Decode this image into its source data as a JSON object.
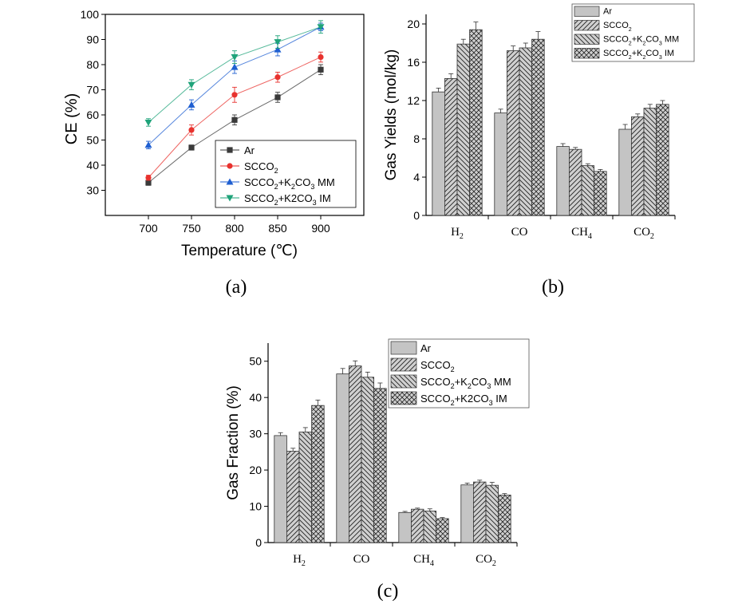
{
  "panels": [
    {
      "panel_label": "(a)",
      "legend": [
        {
          "text": "Ar"
        },
        {
          "text": "SCCO",
          "sub": "2",
          "rest": ""
        },
        {
          "text": "SCCO",
          "sub": "2",
          "rest": "+K",
          "sub2": "2",
          "rest2": "CO",
          "sub3": "3",
          "rest3": " MM"
        },
        {
          "text": "SCCO",
          "sub": "2",
          "rest": "+K2CO",
          "sub2": "3",
          "rest2": "  IM"
        }
      ]
    },
    {
      "panel_label": "(b)",
      "legend": [
        {
          "text": "Ar"
        },
        {
          "text": "SCCO",
          "sub": "2",
          "rest": ""
        },
        {
          "text": "SCCO",
          "sub": "2",
          "rest": "+K",
          "sub2": "2",
          "rest2": "CO",
          "sub3": "3",
          "rest3": " MM"
        },
        {
          "text": "SCCO",
          "sub": "2",
          "rest": "+K",
          "sub2": "2",
          "rest2": "CO",
          "sub3": "3",
          "rest3": " IM"
        }
      ]
    },
    {
      "panel_label": "(c)",
      "legend": [
        {
          "text": "Ar"
        },
        {
          "text": "SCCO",
          "sub": "2",
          "rest": ""
        },
        {
          "text": "SCCO",
          "sub": "2",
          "rest": "+K",
          "sub2": "2",
          "rest2": "CO",
          "sub3": "3",
          "rest3": " MM"
        },
        {
          "text": "SCCO",
          "sub": "2",
          "rest": "+K2CO",
          "sub2": "3",
          "rest2": "  IM"
        }
      ]
    }
  ],
  "chart_data": [
    {
      "type": "line",
      "xlabel": "Temperature (℃)",
      "ylabel": "CE (%)",
      "x": [
        700,
        750,
        800,
        850,
        900
      ],
      "xticks": [
        "700",
        "750",
        "800",
        "850",
        "900"
      ],
      "xlim": [
        650,
        950
      ],
      "ylim": [
        20,
        100
      ],
      "yticks": [
        "30",
        "40",
        "50",
        "60",
        "70",
        "80",
        "90",
        "100"
      ],
      "legend_position": "bottom-right",
      "series": [
        {
          "name": "Ar",
          "marker": "square",
          "color": "#3a3a3a",
          "values": [
            33,
            47,
            58,
            67,
            78
          ],
          "errors": [
            1,
            1,
            2,
            2,
            2
          ]
        },
        {
          "name": "SCCO2",
          "marker": "circle",
          "color": "#e8322e",
          "values": [
            35,
            54,
            68,
            75,
            83
          ],
          "errors": [
            1,
            2,
            3,
            2,
            2
          ]
        },
        {
          "name": "SCCO2+K2CO3 MM",
          "marker": "triangle-up",
          "color": "#1f5fd1",
          "values": [
            48,
            64,
            79,
            86,
            95
          ],
          "errors": [
            1.5,
            2,
            2.5,
            2.5,
            1.5
          ]
        },
        {
          "name": "SCCO2+K2CO3  IM",
          "marker": "triangle-down",
          "color": "#1fa37a",
          "values": [
            57,
            72,
            83,
            89,
            95
          ],
          "errors": [
            1.5,
            2,
            2.5,
            2.5,
            2.5
          ]
        }
      ]
    },
    {
      "type": "bar",
      "ylabel": "Gas Yields (mol/kg)",
      "categories": [
        {
          "base": "H",
          "sub": "2"
        },
        {
          "base": "CO",
          "sub": ""
        },
        {
          "base": "CH",
          "sub": "4"
        },
        {
          "base": "CO",
          "sub": "2"
        }
      ],
      "ylim": [
        0,
        21
      ],
      "yticks": [
        "0",
        "4",
        "8",
        "12",
        "16",
        "20"
      ],
      "legend_position": "top-right",
      "series": [
        {
          "name": "Ar",
          "pattern": "solid",
          "values": [
            12.9,
            10.7,
            7.2,
            9.0
          ],
          "errors": [
            0.4,
            0.4,
            0.3,
            0.5
          ]
        },
        {
          "name": "SCCO2",
          "pattern": "hatch-right",
          "values": [
            14.3,
            17.2,
            6.9,
            10.3
          ],
          "errors": [
            0.5,
            0.5,
            0.2,
            0.3
          ]
        },
        {
          "name": "SCCO2+K2CO3 MM",
          "pattern": "hatch-left",
          "values": [
            17.9,
            17.5,
            5.2,
            11.2
          ],
          "errors": [
            0.5,
            0.5,
            0.2,
            0.4
          ]
        },
        {
          "name": "SCCO2+K2CO3 IM",
          "pattern": "crosshatch",
          "values": [
            19.4,
            18.4,
            4.6,
            11.6
          ],
          "errors": [
            0.8,
            0.8,
            0.2,
            0.4
          ]
        }
      ]
    },
    {
      "type": "bar",
      "ylabel": "Gas Fraction (%)",
      "categories": [
        {
          "base": "H",
          "sub": "2"
        },
        {
          "base": "CO",
          "sub": ""
        },
        {
          "base": "CH",
          "sub": "4"
        },
        {
          "base": "CO",
          "sub": "2"
        }
      ],
      "ylim": [
        0,
        55
      ],
      "yticks": [
        "0",
        "10",
        "20",
        "30",
        "40",
        "50"
      ],
      "legend_position": "top-right",
      "series": [
        {
          "name": "Ar",
          "pattern": "solid",
          "values": [
            29.5,
            46.5,
            8.3,
            15.9
          ],
          "errors": [
            0.8,
            1.5,
            0.3,
            0.5
          ]
        },
        {
          "name": "SCCO2",
          "pattern": "hatch-right",
          "values": [
            25.2,
            48.7,
            9.2,
            16.7
          ],
          "errors": [
            0.8,
            1.4,
            0.3,
            0.5
          ]
        },
        {
          "name": "SCCO2+K2CO3 MM",
          "pattern": "hatch-left",
          "values": [
            30.5,
            45.6,
            8.7,
            15.8
          ],
          "errors": [
            1.2,
            1.4,
            0.6,
            0.8
          ]
        },
        {
          "name": "SCCO2+K2CO3 IM",
          "pattern": "crosshatch",
          "values": [
            37.8,
            42.5,
            6.6,
            13.1
          ],
          "errors": [
            1.5,
            1.5,
            0.3,
            0.4
          ]
        }
      ]
    }
  ]
}
